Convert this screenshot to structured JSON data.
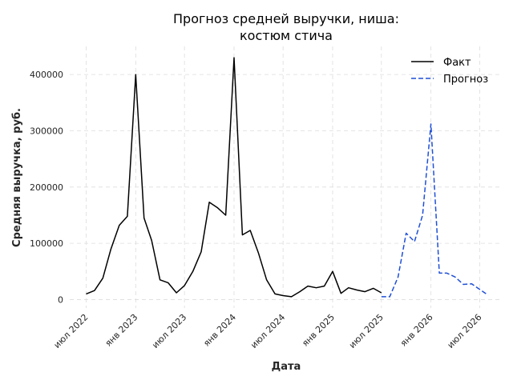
{
  "chart_data": {
    "type": "line",
    "title": "Прогноз средней выручки, ниша:\nкостюм стича",
    "title_lines": [
      "Прогноз средней выручки, ниша:",
      "костюм стича"
    ],
    "xlabel": "Дата",
    "ylabel": "Средняя выручка, руб.",
    "ylim": [
      -15000,
      450000
    ],
    "xlim": [
      "2022-05-01",
      "2026-09-15"
    ],
    "yticks": [
      0,
      100000,
      200000,
      300000,
      400000
    ],
    "ytick_labels": [
      "0",
      "100000",
      "200000",
      "300000",
      "400000"
    ],
    "xticks": [
      "2022-07-01",
      "2023-01-01",
      "2023-07-01",
      "2024-01-01",
      "2024-07-01",
      "2025-01-01",
      "2025-07-01",
      "2026-01-01",
      "2026-07-01"
    ],
    "xtick_labels": [
      "июл 2022",
      "янв 2023",
      "июл 2023",
      "янв 2024",
      "июл 2024",
      "янв 2025",
      "июл 2025",
      "янв 2026",
      "июл 2026"
    ],
    "grid": true,
    "legend_position": "top-right",
    "series": [
      {
        "name": "Факт",
        "color": "#000000",
        "style": "solid",
        "x": [
          "2022-07-01",
          "2022-08-01",
          "2022-09-01",
          "2022-10-01",
          "2022-11-01",
          "2022-12-01",
          "2023-01-01",
          "2023-02-01",
          "2023-03-01",
          "2023-04-01",
          "2023-05-01",
          "2023-06-01",
          "2023-07-01",
          "2023-08-01",
          "2023-09-01",
          "2023-10-01",
          "2023-11-01",
          "2023-12-01",
          "2024-01-01",
          "2024-02-01",
          "2024-03-01",
          "2024-04-01",
          "2024-05-01",
          "2024-06-01",
          "2024-07-01",
          "2024-08-01",
          "2024-09-01",
          "2024-10-01",
          "2024-11-01",
          "2024-12-01",
          "2025-01-01",
          "2025-02-01",
          "2025-03-01",
          "2025-04-01",
          "2025-05-01",
          "2025-06-01",
          "2025-07-01"
        ],
        "y": [
          10000,
          16000,
          38000,
          90000,
          132000,
          148000,
          400000,
          145000,
          105000,
          35000,
          30000,
          12000,
          25000,
          50000,
          85000,
          173000,
          163000,
          150000,
          430000,
          115000,
          123000,
          82000,
          35000,
          10000,
          7000,
          5000,
          14000,
          24000,
          21000,
          24000,
          50000,
          11000,
          21000,
          17000,
          14000,
          20000,
          12000
        ]
      },
      {
        "name": "Прогноз",
        "color": "#1f4fd6",
        "style": "dashed",
        "x": [
          "2025-07-01",
          "2025-08-01",
          "2025-09-01",
          "2025-10-01",
          "2025-11-01",
          "2025-12-01",
          "2026-01-01",
          "2026-02-01",
          "2026-03-01",
          "2026-04-01",
          "2026-05-01",
          "2026-06-01",
          "2026-07-01",
          "2026-08-01"
        ],
        "y": [
          5000,
          5000,
          40000,
          118000,
          103000,
          150000,
          312000,
          47000,
          47000,
          40000,
          27000,
          28000,
          18000,
          8000
        ]
      }
    ]
  }
}
